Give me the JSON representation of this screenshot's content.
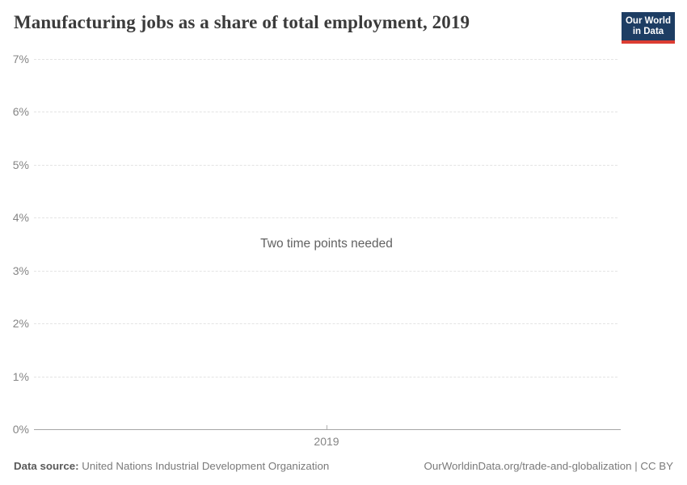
{
  "header": {
    "title": "Manufacturing jobs as a share of total employment, 2019",
    "logo": {
      "line1": "Our World",
      "line2": "in Data"
    }
  },
  "chart_data": {
    "type": "line",
    "title": "Manufacturing jobs as a share of total employment, 2019",
    "series": [],
    "x": [
      2019
    ],
    "ylim": [
      0,
      7
    ],
    "ytick_values": [
      0,
      1,
      2,
      3,
      4,
      5,
      6,
      7
    ],
    "yticks": [
      "0%",
      "1%",
      "2%",
      "3%",
      "4%",
      "5%",
      "6%",
      "7%"
    ],
    "xticks": [
      "2019"
    ],
    "grid": "horizontal-dashed",
    "legend": "none",
    "annotation": "Two time points needed"
  },
  "footer": {
    "datasource_label": "Data source:",
    "datasource_value": "United Nations Industrial Development Organization",
    "link_text": "OurWorldinData.org/trade-and-globalization | CC BY"
  },
  "colors": {
    "logo_navy": "#1d3d63",
    "logo_red": "#dc3d33",
    "title_text": "#3b3b3b",
    "tick_text": "#858585",
    "gridline": "#e4e4e4",
    "axis_line": "#a5a5a5",
    "message_text": "#626262",
    "footer_text": "#7a7a7a"
  }
}
